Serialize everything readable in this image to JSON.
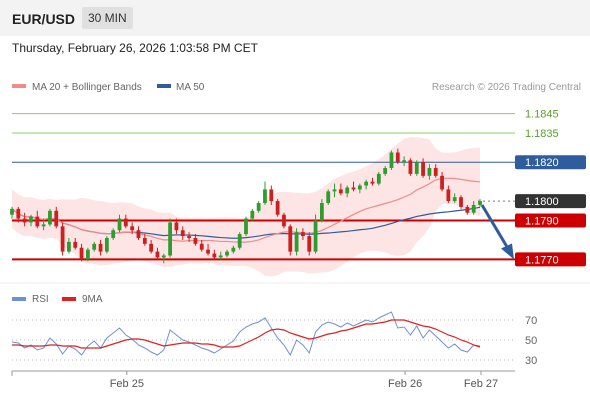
{
  "header": {
    "symbol": "EUR/USD",
    "timeframe": "30 MIN",
    "datetime": "Thursday, February 26, 2026 1:03:58 PM CET"
  },
  "legend": {
    "ma20": "MA 20 + Bollinger Bands",
    "ma50": "MA 50",
    "credit": "Research © 2026 Trading Central",
    "rsi": "RSI",
    "ma9": "9MA"
  },
  "colors": {
    "bull": "#2e9c2e",
    "bear": "#cc1f1f",
    "ma20": "#f28a8a",
    "band_fill": "#fde0e0",
    "ma50": "#2e5c9c",
    "resistance": "#8ccc6a",
    "pivot": "#cc0000",
    "blue_level": "#2e5c9c",
    "rsi_line": "#6f8fd6",
    "rsi_ma": "#dd2222",
    "last_price": "#333333",
    "arrow": "#2e5c9c"
  },
  "chart_data": [
    {
      "type": "candlestick",
      "title": "",
      "x_ticks": [
        "Feb 25",
        "Feb 26",
        "Feb 27"
      ],
      "ylim": [
        1.1763,
        1.1852
      ],
      "levels": [
        {
          "value": 1.1845,
          "label": "1.1845",
          "kind": "resistance"
        },
        {
          "value": 1.1835,
          "label": "1.1835",
          "kind": "resistance"
        },
        {
          "value": 1.182,
          "label": "1.1820",
          "kind": "blue"
        },
        {
          "value": 1.18,
          "label": "1.1800",
          "kind": "last"
        },
        {
          "value": 1.179,
          "label": "1.1790",
          "kind": "pivot"
        },
        {
          "value": 1.177,
          "label": "1.1770",
          "kind": "pivot"
        }
      ],
      "forecast": {
        "from": 1.1798,
        "to": 1.1771
      },
      "candles": [
        [
          1.1793,
          1.1797,
          1.1791,
          1.1796
        ],
        [
          1.1796,
          1.1797,
          1.1789,
          1.1791
        ],
        [
          1.1791,
          1.1794,
          1.1787,
          1.1789
        ],
        [
          1.1789,
          1.1793,
          1.1787,
          1.1792
        ],
        [
          1.1792,
          1.1795,
          1.1786,
          1.1787
        ],
        [
          1.1787,
          1.1791,
          1.1785,
          1.1788
        ],
        [
          1.1788,
          1.1796,
          1.1787,
          1.1795
        ],
        [
          1.1795,
          1.1797,
          1.1786,
          1.1787
        ],
        [
          1.1787,
          1.1789,
          1.1772,
          1.1774
        ],
        [
          1.1774,
          1.1781,
          1.1773,
          1.1779
        ],
        [
          1.1779,
          1.1781,
          1.1775,
          1.1776
        ],
        [
          1.1776,
          1.1778,
          1.1769,
          1.177
        ],
        [
          1.177,
          1.1776,
          1.1769,
          1.1775
        ],
        [
          1.1775,
          1.1779,
          1.1774,
          1.1778
        ],
        [
          1.1778,
          1.178,
          1.1772,
          1.1774
        ],
        [
          1.1774,
          1.1782,
          1.1773,
          1.1781
        ],
        [
          1.1781,
          1.1786,
          1.178,
          1.1785
        ],
        [
          1.1785,
          1.1793,
          1.1784,
          1.1791
        ],
        [
          1.1791,
          1.1793,
          1.1786,
          1.1787
        ],
        [
          1.1787,
          1.1789,
          1.1783,
          1.1785
        ],
        [
          1.1785,
          1.1787,
          1.178,
          1.1781
        ],
        [
          1.1781,
          1.1783,
          1.1777,
          1.1778
        ],
        [
          1.1778,
          1.178,
          1.1773,
          1.1774
        ],
        [
          1.1774,
          1.1776,
          1.177,
          1.1771
        ],
        [
          1.1771,
          1.1773,
          1.1768,
          1.1772
        ],
        [
          1.1772,
          1.1791,
          1.1771,
          1.1789
        ],
        [
          1.1789,
          1.1791,
          1.1783,
          1.1785
        ],
        [
          1.1785,
          1.1787,
          1.178,
          1.1782
        ],
        [
          1.1782,
          1.1784,
          1.1779,
          1.1781
        ],
        [
          1.1781,
          1.1783,
          1.1777,
          1.1778
        ],
        [
          1.1778,
          1.178,
          1.1774,
          1.1775
        ],
        [
          1.1775,
          1.1778,
          1.1772,
          1.1773
        ],
        [
          1.1773,
          1.1775,
          1.177,
          1.1771
        ],
        [
          1.1771,
          1.1774,
          1.177,
          1.1772
        ],
        [
          1.1772,
          1.1775,
          1.1771,
          1.1774
        ],
        [
          1.1774,
          1.1777,
          1.1773,
          1.1776
        ],
        [
          1.1776,
          1.1784,
          1.1775,
          1.1783
        ],
        [
          1.1783,
          1.1792,
          1.1782,
          1.1791
        ],
        [
          1.1791,
          1.1796,
          1.179,
          1.1795
        ],
        [
          1.1795,
          1.18,
          1.1794,
          1.1799
        ],
        [
          1.1799,
          1.181,
          1.1798,
          1.1806
        ],
        [
          1.1806,
          1.1808,
          1.1798,
          1.18
        ],
        [
          1.18,
          1.1801,
          1.1792,
          1.1793
        ],
        [
          1.1793,
          1.1794,
          1.1786,
          1.1787
        ],
        [
          1.1787,
          1.1788,
          1.1772,
          1.1774
        ],
        [
          1.1774,
          1.1786,
          1.1772,
          1.1784
        ],
        [
          1.1784,
          1.1786,
          1.178,
          1.1782
        ],
        [
          1.1782,
          1.1784,
          1.1772,
          1.1774
        ],
        [
          1.1774,
          1.1793,
          1.1773,
          1.179
        ],
        [
          1.179,
          1.1801,
          1.1789,
          1.1799
        ],
        [
          1.1799,
          1.1806,
          1.1798,
          1.1805
        ],
        [
          1.1805,
          1.1809,
          1.1802,
          1.1806
        ],
        [
          1.1806,
          1.1809,
          1.1803,
          1.1804
        ],
        [
          1.1804,
          1.1808,
          1.1802,
          1.1807
        ],
        [
          1.1807,
          1.181,
          1.1805,
          1.1806
        ],
        [
          1.1806,
          1.1809,
          1.1804,
          1.1808
        ],
        [
          1.1808,
          1.1811,
          1.1806,
          1.181
        ],
        [
          1.181,
          1.1812,
          1.1808,
          1.1809
        ],
        [
          1.1809,
          1.1815,
          1.1808,
          1.1814
        ],
        [
          1.1814,
          1.1818,
          1.1813,
          1.1817
        ],
        [
          1.1817,
          1.1826,
          1.1816,
          1.1825
        ],
        [
          1.1825,
          1.1827,
          1.1819,
          1.182
        ],
        [
          1.182,
          1.1823,
          1.1818,
          1.1821
        ],
        [
          1.1821,
          1.1822,
          1.1813,
          1.1814
        ],
        [
          1.1814,
          1.1821,
          1.1813,
          1.182
        ],
        [
          1.182,
          1.1822,
          1.1812,
          1.1813
        ],
        [
          1.1813,
          1.1819,
          1.1811,
          1.1817
        ],
        [
          1.1817,
          1.1819,
          1.1812,
          1.1813
        ],
        [
          1.1813,
          1.1815,
          1.1805,
          1.1806
        ],
        [
          1.1806,
          1.1808,
          1.1799,
          1.18
        ],
        [
          1.18,
          1.1804,
          1.1799,
          1.1802
        ],
        [
          1.1802,
          1.1803,
          1.1796,
          1.1797
        ],
        [
          1.1797,
          1.1798,
          1.1793,
          1.1794
        ],
        [
          1.1794,
          1.18,
          1.1793,
          1.1798
        ],
        [
          1.1798,
          1.1801,
          1.1797,
          1.18
        ]
      ]
    },
    {
      "type": "line",
      "title": "RSI",
      "ylim": [
        24,
        78
      ],
      "y_ticks": [
        70,
        50,
        30
      ],
      "series": [
        {
          "name": "RSI",
          "values": [
            48,
            47,
            42,
            45,
            40,
            42,
            52,
            46,
            36,
            44,
            41,
            35,
            44,
            49,
            42,
            52,
            57,
            62,
            55,
            51,
            45,
            42,
            38,
            35,
            40,
            60,
            55,
            50,
            48,
            45,
            42,
            40,
            37,
            41,
            45,
            49,
            58,
            63,
            66,
            68,
            72,
            62,
            52,
            45,
            35,
            50,
            45,
            37,
            58,
            65,
            68,
            66,
            63,
            67,
            64,
            67,
            70,
            68,
            72,
            75,
            78,
            62,
            63,
            55,
            64,
            52,
            60,
            54,
            48,
            42,
            46,
            40,
            38,
            45,
            44
          ]
        },
        {
          "name": "9MA",
          "values": [
            45,
            45,
            44,
            44,
            44,
            44,
            45,
            45,
            44,
            44,
            44,
            42,
            42,
            42,
            42,
            44,
            46,
            48,
            50,
            51,
            51,
            50,
            48,
            46,
            44,
            45,
            46,
            47,
            47,
            47,
            46,
            46,
            45,
            43,
            43,
            43,
            44,
            47,
            50,
            53,
            57,
            60,
            61,
            60,
            57,
            55,
            53,
            51,
            52,
            54,
            56,
            57,
            59,
            60,
            62,
            64,
            66,
            66,
            67,
            68,
            70,
            70,
            70,
            68,
            66,
            64,
            63,
            61,
            58,
            55,
            53,
            50,
            48,
            45,
            43
          ]
        }
      ]
    }
  ]
}
